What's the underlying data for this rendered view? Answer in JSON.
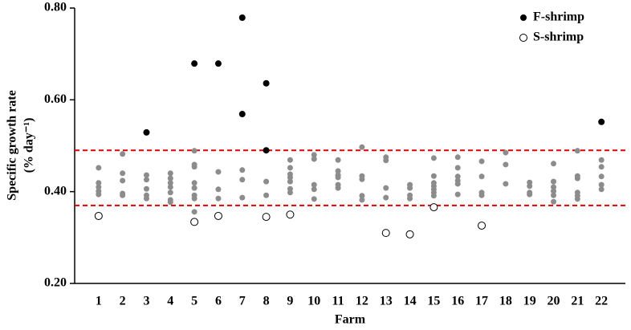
{
  "chart_data": {
    "type": "scatter",
    "x_label": "Farm",
    "y_label": [
      "Specific growth rate",
      "(% day⁻¹)"
    ],
    "xlim": [
      0,
      23
    ],
    "xticks": [
      1,
      2,
      3,
      4,
      5,
      6,
      7,
      8,
      9,
      10,
      11,
      12,
      13,
      14,
      15,
      16,
      17,
      18,
      19,
      20,
      21,
      22
    ],
    "ylim": [
      0.2,
      0.8
    ],
    "yticks": [
      {
        "value": 0.2,
        "label": "0.20"
      },
      {
        "value": 0.4,
        "label": "0.40"
      },
      {
        "value": 0.6,
        "label": "0.60"
      },
      {
        "value": 0.8,
        "label": "0.80"
      }
    ],
    "legend": "upper right",
    "reference_lines": {
      "values": [
        0.49,
        0.37
      ],
      "color": "#e00000"
    },
    "series": [
      {
        "color": "#8c8c8c",
        "marker": "filled",
        "x": [
          1,
          1,
          1,
          1,
          1,
          2,
          2,
          2,
          2,
          2,
          3,
          3,
          3,
          3,
          3,
          4,
          4,
          4,
          4,
          4,
          4,
          4,
          5,
          5,
          5,
          5,
          5,
          5,
          5,
          5,
          6,
          6,
          6,
          7,
          7,
          7,
          8,
          8,
          9,
          9,
          9,
          9,
          9,
          9,
          9,
          10,
          10,
          10,
          10,
          10,
          11,
          11,
          11,
          11,
          11,
          11,
          12,
          12,
          12,
          12,
          12,
          13,
          13,
          13,
          13,
          14,
          14,
          14,
          14,
          15,
          15,
          15,
          15,
          15,
          15,
          15,
          16,
          16,
          16,
          16,
          16,
          16,
          17,
          17,
          17,
          17,
          18,
          18,
          18,
          19,
          19,
          19,
          19,
          20,
          20,
          20,
          20,
          20,
          20,
          21,
          21,
          21,
          21,
          21,
          21,
          22,
          22,
          22,
          22,
          22
        ],
        "values": [
          0.452,
          0.419,
          0.41,
          0.401,
          0.394,
          0.482,
          0.44,
          0.424,
          0.396,
          0.392,
          0.436,
          0.426,
          0.406,
          0.392,
          0.385,
          0.44,
          0.429,
          0.419,
          0.41,
          0.398,
          0.382,
          0.377,
          0.489,
          0.459,
          0.454,
          0.419,
          0.408,
          0.392,
          0.385,
          0.356,
          0.443,
          0.405,
          0.385,
          0.447,
          0.426,
          0.387,
          0.422,
          0.392,
          0.469,
          0.452,
          0.438,
          0.431,
          0.422,
          0.406,
          0.398,
          0.48,
          0.471,
          0.415,
          0.405,
          0.384,
          0.469,
          0.445,
          0.436,
          0.431,
          0.415,
          0.408,
          0.497,
          0.434,
          0.427,
          0.391,
          0.382,
          0.475,
          0.468,
          0.408,
          0.387,
          0.415,
          0.408,
          0.392,
          0.385,
          0.473,
          0.434,
          0.419,
          0.412,
          0.405,
          0.398,
          0.391,
          0.475,
          0.452,
          0.433,
          0.424,
          0.417,
          0.394,
          0.466,
          0.433,
          0.398,
          0.392,
          0.485,
          0.459,
          0.417,
          0.42,
          0.412,
          0.398,
          0.394,
          0.461,
          0.422,
          0.41,
          0.401,
          0.392,
          0.378,
          0.489,
          0.434,
          0.429,
          0.398,
          0.391,
          0.384,
          0.469,
          0.454,
          0.433,
          0.415,
          0.405
        ]
      },
      {
        "name": "F-shrimp",
        "color": "#000000",
        "marker": "filled",
        "x": [
          3,
          5,
          6,
          7,
          7,
          8,
          8,
          22
        ],
        "values": [
          0.529,
          0.679,
          0.679,
          0.779,
          0.569,
          0.636,
          0.49,
          0.552
        ]
      },
      {
        "name": "S-shrimp",
        "color": "#000000",
        "marker": "open",
        "x": [
          1,
          5,
          6,
          8,
          9,
          13,
          14,
          15,
          17
        ],
        "values": [
          0.347,
          0.334,
          0.347,
          0.345,
          0.35,
          0.31,
          0.307,
          0.366,
          0.326
        ]
      }
    ]
  }
}
